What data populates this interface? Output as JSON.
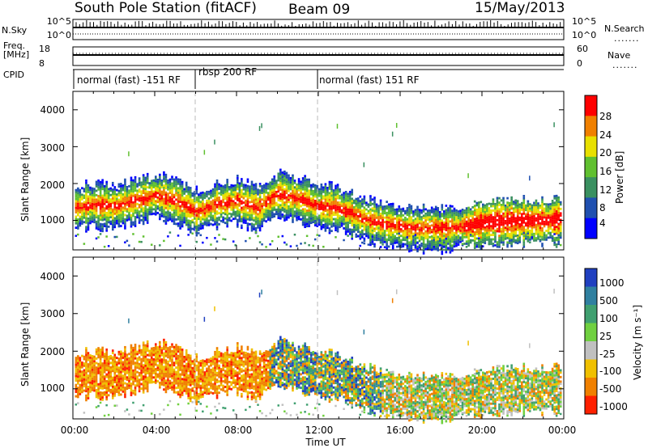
{
  "header": {
    "station": "South Pole Station (fitACF)",
    "beam": "Beam 09",
    "date": "15/May/2013"
  },
  "top_panels": {
    "nsky_label": "N.Sky",
    "nsky_ticks": [
      "10^5",
      "10^0"
    ],
    "nsearch_label": "N.Search",
    "nsearch_ticks": [
      "10^5",
      "10^0"
    ],
    "freq_label_1": "Freq.",
    "freq_label_2": "[MHz]",
    "freq_ticks": [
      "18",
      "8"
    ],
    "nave_label": "Nave",
    "nave_ticks": [
      "60",
      "0"
    ],
    "cpid_label": "CPID",
    "cpid_segments": [
      {
        "label": "normal (fast) -151 RF",
        "start_hour": 0,
        "end_hour": 6
      },
      {
        "label": "rbsp 200 RF",
        "start_hour": 6,
        "end_hour": 12
      },
      {
        "label": "normal (fast) 151 RF",
        "start_hour": 12,
        "end_hour": 24
      }
    ],
    "dots": "......."
  },
  "x_axis": {
    "label": "Time UT",
    "ticks": [
      "00:00",
      "04:00",
      "08:00",
      "12:00",
      "16:00",
      "20:00",
      "00:00"
    ],
    "range_hours": [
      0,
      24
    ]
  },
  "power_panel": {
    "ylabel": "Slant Range [km]",
    "yticks": [
      "4000",
      "3000",
      "2000",
      "1000"
    ],
    "colorbar_label": "Power [dB]",
    "colorbar_ticks": [
      "28",
      "24",
      "20",
      "16",
      "12",
      "8",
      "4"
    ],
    "colors": [
      "#0000ff",
      "#2050b0",
      "#3a9060",
      "#60c030",
      "#e8e000",
      "#f08000",
      "#ff0000"
    ]
  },
  "velocity_panel": {
    "ylabel": "Slant Range [km]",
    "yticks": [
      "4000",
      "3000",
      "2000",
      "1000"
    ],
    "colorbar_label": "Velocity [m s⁻¹]",
    "colorbar_ticks": [
      "1000",
      "500",
      "100",
      "25",
      "-25",
      "-100",
      "-500",
      "-1000"
    ],
    "colors": [
      "#2040c0",
      "#3080a0",
      "#40a070",
      "#70d040",
      "#c0c0c0",
      "#f0c000",
      "#f08000",
      "#ff2000"
    ]
  },
  "chart_data": [
    {
      "type": "heatmap",
      "title": "Power",
      "xlabel": "Time UT",
      "ylabel": "Slant Range [km]",
      "xlim_hours": [
        0,
        24
      ],
      "ylim_km": [
        200,
        4500
      ],
      "colorbar": {
        "label": "Power [dB]",
        "range": [
          0,
          30
        ]
      },
      "backscatter_band_center_km": [
        [
          0,
          1300
        ],
        [
          1,
          1400
        ],
        [
          2,
          1350
        ],
        [
          3,
          1500
        ],
        [
          4,
          1650
        ],
        [
          5,
          1500
        ],
        [
          6,
          1200
        ],
        [
          7,
          1400
        ],
        [
          8,
          1500
        ],
        [
          9,
          1300
        ],
        [
          10,
          1700
        ],
        [
          11,
          1550
        ],
        [
          12,
          1350
        ],
        [
          13,
          1300
        ],
        [
          14,
          1050
        ],
        [
          15,
          900
        ],
        [
          16,
          800
        ],
        [
          17,
          750
        ],
        [
          18,
          750
        ],
        [
          19,
          800
        ],
        [
          20,
          900
        ],
        [
          21,
          950
        ],
        [
          22,
          950
        ],
        [
          23,
          950
        ],
        [
          24,
          1000
        ]
      ]
    },
    {
      "type": "heatmap",
      "title": "Velocity",
      "xlabel": "Time UT",
      "ylabel": "Slant Range [km]",
      "xlim_hours": [
        0,
        24
      ],
      "ylim_km": [
        200,
        4500
      ],
      "colorbar": {
        "label": "Velocity [m s⁻¹]",
        "range": [
          -1000,
          1000
        ]
      }
    }
  ]
}
